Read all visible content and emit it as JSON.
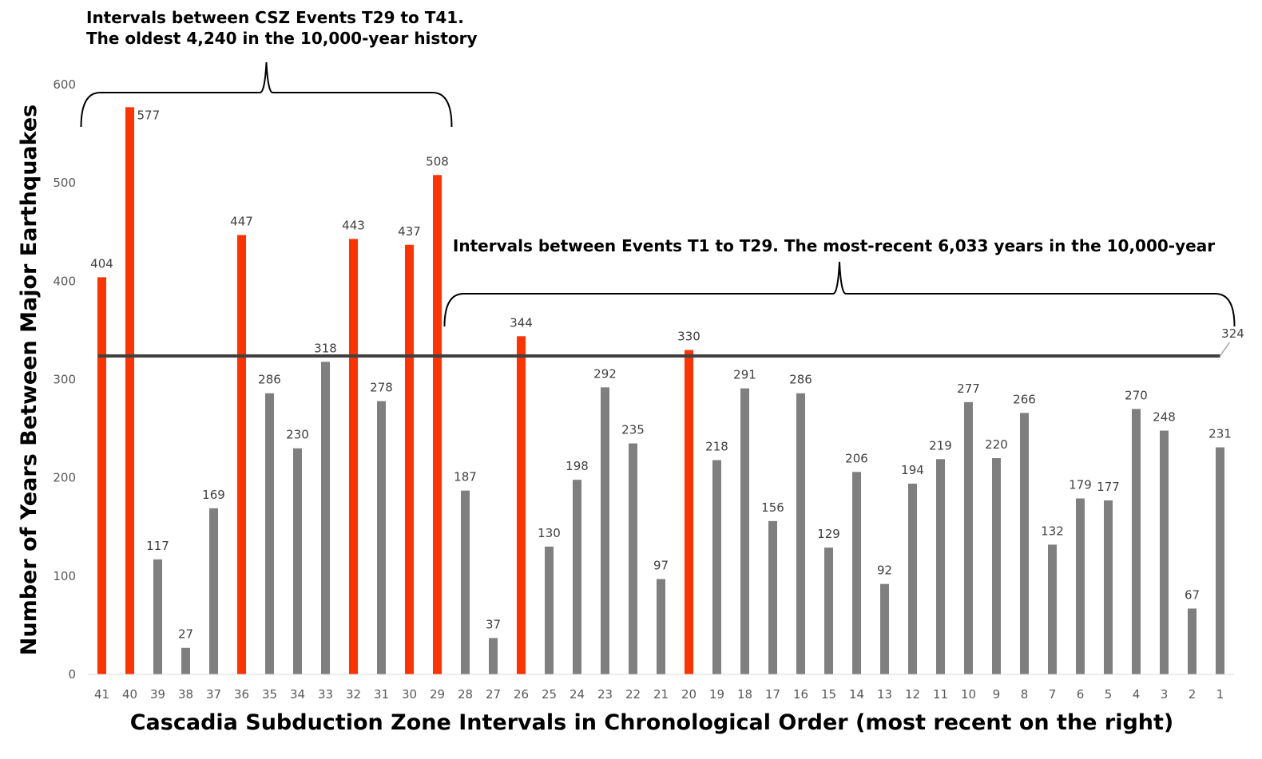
{
  "chart_data": {
    "type": "bar",
    "xlabel": "Cascadia Subduction Zone Intervals in Chronological Order (most recent on the right)",
    "ylabel": "Number of Years Between Major Earthquakes",
    "ylim": [
      0,
      600
    ],
    "yticks": [
      0,
      100,
      200,
      300,
      400,
      500,
      600
    ],
    "grid": false,
    "categories": [
      "41",
      "40",
      "39",
      "38",
      "37",
      "36",
      "35",
      "34",
      "33",
      "32",
      "31",
      "30",
      "29",
      "28",
      "27",
      "26",
      "25",
      "24",
      "23",
      "22",
      "21",
      "20",
      "19",
      "18",
      "17",
      "16",
      "15",
      "14",
      "13",
      "12",
      "11",
      "10",
      "9",
      "8",
      "7",
      "6",
      "5",
      "4",
      "3",
      "2",
      "1"
    ],
    "values": [
      404,
      577,
      117,
      27,
      169,
      447,
      286,
      230,
      318,
      443,
      278,
      437,
      508,
      187,
      37,
      344,
      130,
      198,
      292,
      235,
      97,
      330,
      218,
      291,
      156,
      286,
      129,
      206,
      92,
      194,
      219,
      277,
      220,
      266,
      132,
      179,
      177,
      270,
      248,
      67,
      231
    ],
    "value_labels": [
      "404",
      "577",
      "117",
      "27",
      "169",
      "447",
      "286",
      "230",
      "318",
      "443",
      "278",
      "437",
      "508",
      "187",
      "37",
      "344",
      "130",
      "198",
      "292",
      "235",
      "97",
      "330",
      "218",
      "291",
      "156",
      "286",
      "129",
      "206",
      "92",
      "194",
      "219",
      "277",
      "220",
      "266",
      "132",
      "179",
      "177",
      "270",
      "248",
      "67",
      "231"
    ],
    "highlight_categories": [
      "41",
      "40",
      "36",
      "32",
      "30",
      "29",
      "26",
      "20"
    ],
    "highlight_color": "#ff3300",
    "bar_color": "#7f7f7f",
    "reference_line": {
      "value": 324,
      "label": "324",
      "color": "#404040"
    },
    "annotations": [
      {
        "lines": [
          "Intervals between CSZ Events T29 to T41.",
          "The oldest 4,240 in the 10,000-year history"
        ],
        "span": [
          "41",
          "29"
        ]
      },
      {
        "lines": [
          "Intervals between Events T1 to T29. The most-recent 6,033 years in the 10,000-year"
        ],
        "span": [
          "28",
          "1"
        ]
      }
    ]
  }
}
